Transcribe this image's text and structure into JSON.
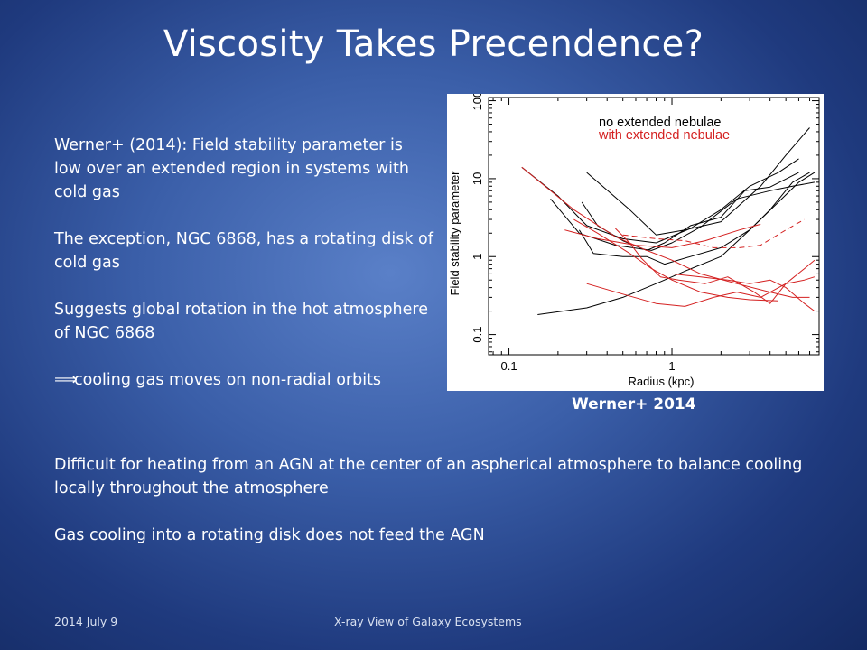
{
  "slide": {
    "title": "Viscosity Takes Precendence?",
    "left_paragraphs": [
      "Werner+ (2014):  Field stability parameter is low over an extended region in systems with cold gas",
      "The exception, NGC 6868, has a rotating disk of cold gas",
      "Suggests global rotation in the hot atmosphere of NGC 6868"
    ],
    "arrow_symbol": "⟹",
    "arrow_text": "cooling gas moves on non-radial orbits",
    "bottom_paragraphs": [
      "Difficult for heating from an AGN at the center of an aspherical atmosphere to balance cooling locally throughout the atmosphere",
      "Gas cooling into a rotating disk does not feed the AGN"
    ],
    "figure_caption": "Werner+ 2014",
    "footer_left": "2014 July 9",
    "footer_center": "X-ray View of Galaxy Ecosystems"
  },
  "chart_data": {
    "type": "line",
    "xlabel": "Radius (kpc)",
    "ylabel": "Field stability parameter",
    "xscale": "log",
    "yscale": "log",
    "xlim": [
      0.075,
      8
    ],
    "ylim": [
      0.055,
      110
    ],
    "x_ticks": [
      "0.1",
      "1"
    ],
    "y_ticks": [
      "0.1",
      "1",
      "10",
      "100"
    ],
    "legend": [
      {
        "label": "no extended nebulae",
        "color": "#000000"
      },
      {
        "label": "with extended nebulae",
        "color": "#d42020"
      }
    ],
    "series": [
      {
        "group": "no extended nebulae",
        "color": "#000000",
        "points": [
          [
            0.3,
            12
          ],
          [
            0.55,
            4
          ],
          [
            0.8,
            1.9
          ],
          [
            1.2,
            2.2
          ],
          [
            2,
            2.8
          ],
          [
            3.5,
            8
          ],
          [
            5,
            20
          ],
          [
            7,
            45
          ]
        ]
      },
      {
        "group": "no extended nebulae",
        "color": "#000000",
        "points": [
          [
            0.12,
            14
          ],
          [
            0.2,
            6
          ],
          [
            0.3,
            2.5
          ],
          [
            0.5,
            1.7
          ],
          [
            0.8,
            1.5
          ],
          [
            1.3,
            2.3
          ],
          [
            2,
            4
          ],
          [
            3,
            8
          ],
          [
            4.5,
            12
          ],
          [
            6,
            18
          ]
        ]
      },
      {
        "group": "no extended nebulae",
        "color": "#000000",
        "points": [
          [
            0.18,
            5.5
          ],
          [
            0.27,
            2
          ],
          [
            0.45,
            1.4
          ],
          [
            0.75,
            1.2
          ],
          [
            1,
            1.5
          ],
          [
            1.5,
            2.4
          ],
          [
            2.5,
            5.5
          ],
          [
            4,
            7
          ],
          [
            5.5,
            8
          ],
          [
            7.5,
            9
          ]
        ]
      },
      {
        "group": "no extended nebulae",
        "color": "#000000",
        "points": [
          [
            0.28,
            5
          ],
          [
            0.35,
            2.5
          ],
          [
            0.5,
            1.6
          ],
          [
            0.7,
            1.2
          ],
          [
            0.9,
            1.5
          ],
          [
            1.3,
            2.5
          ],
          [
            2,
            3.2
          ],
          [
            2.8,
            7
          ],
          [
            4,
            7.8
          ],
          [
            6,
            12
          ]
        ]
      },
      {
        "group": "no extended nebulae",
        "color": "#000000",
        "points": [
          [
            0.27,
            2.2
          ],
          [
            0.33,
            1.1
          ],
          [
            0.5,
            1
          ],
          [
            0.7,
            1
          ],
          [
            0.9,
            0.8
          ],
          [
            1.3,
            1
          ],
          [
            2,
            1.3
          ],
          [
            3,
            2.2
          ],
          [
            4,
            4
          ],
          [
            5.5,
            9
          ],
          [
            7,
            12
          ]
        ]
      },
      {
        "group": "no extended nebulae",
        "color": "#000000",
        "points": [
          [
            0.15,
            0.18
          ],
          [
            0.3,
            0.22
          ],
          [
            0.5,
            0.3
          ],
          [
            0.8,
            0.45
          ],
          [
            1.2,
            0.65
          ],
          [
            2,
            1
          ],
          [
            3,
            2.2
          ],
          [
            4.5,
            5
          ],
          [
            6,
            9
          ],
          [
            7.5,
            12
          ]
        ]
      },
      {
        "group": "with extended nebulae",
        "color": "#d42020",
        "points": [
          [
            0.12,
            14
          ],
          [
            0.25,
            4
          ],
          [
            0.45,
            1.8
          ],
          [
            0.7,
            1.2
          ],
          [
            1,
            0.9
          ],
          [
            1.5,
            0.6
          ],
          [
            2.5,
            0.45
          ],
          [
            4,
            0.35
          ],
          [
            5.5,
            0.3
          ],
          [
            7,
            0.3
          ]
        ]
      },
      {
        "group": "with extended nebulae",
        "color": "#d42020",
        "points": [
          [
            0.25,
            3
          ],
          [
            0.35,
            2
          ],
          [
            0.55,
            1.1
          ],
          [
            0.75,
            0.7
          ],
          [
            1,
            0.5
          ],
          [
            1.5,
            0.35
          ],
          [
            2.2,
            0.3
          ],
          [
            3,
            0.28
          ],
          [
            4.5,
            0.27
          ]
        ]
      },
      {
        "group": "with extended nebulae",
        "color": "#d42020",
        "points": [
          [
            0.3,
            0.45
          ],
          [
            0.5,
            0.33
          ],
          [
            0.8,
            0.25
          ],
          [
            1.2,
            0.23
          ],
          [
            1.8,
            0.3
          ],
          [
            2.5,
            0.35
          ],
          [
            3.5,
            0.3
          ],
          [
            5,
            0.45
          ],
          [
            6.5,
            0.7
          ],
          [
            7.5,
            0.9
          ]
        ]
      },
      {
        "group": "with extended nebulae",
        "color": "#d42020",
        "points": [
          [
            0.45,
            2.3
          ],
          [
            0.55,
            1.5
          ],
          [
            0.65,
            0.95
          ],
          [
            0.85,
            0.55
          ],
          [
            1.1,
            0.5
          ],
          [
            1.6,
            0.45
          ],
          [
            2.2,
            0.55
          ],
          [
            3.2,
            0.35
          ],
          [
            4,
            0.25
          ],
          [
            5,
            0.45
          ],
          [
            6.5,
            0.5
          ],
          [
            7.5,
            0.55
          ]
        ]
      },
      {
        "group": "with extended nebulae",
        "color": "#d42020",
        "points": [
          [
            1,
            0.6
          ],
          [
            1.5,
            0.55
          ],
          [
            2.2,
            0.5
          ],
          [
            3,
            0.45
          ],
          [
            4,
            0.5
          ],
          [
            5,
            0.4
          ],
          [
            6.5,
            0.25
          ],
          [
            7.5,
            0.2
          ]
        ]
      },
      {
        "group": "with extended nebulae",
        "color": "#d42020",
        "points": [
          [
            0.22,
            2.2
          ],
          [
            0.35,
            1.7
          ],
          [
            0.6,
            1.4
          ],
          [
            1,
            1.3
          ],
          [
            1.6,
            1.6
          ],
          [
            2.6,
            2.2
          ],
          [
            3.5,
            2.6
          ]
        ]
      },
      {
        "group": "with extended nebulae",
        "color": "#d42020",
        "dashed": true,
        "points": [
          [
            0.5,
            1.9
          ],
          [
            0.8,
            1.7
          ],
          [
            1.2,
            1.6
          ],
          [
            1.8,
            1.3
          ],
          [
            2.6,
            1.3
          ],
          [
            3.5,
            1.4
          ],
          [
            5,
            2.2
          ],
          [
            6.5,
            3
          ]
        ]
      }
    ]
  }
}
